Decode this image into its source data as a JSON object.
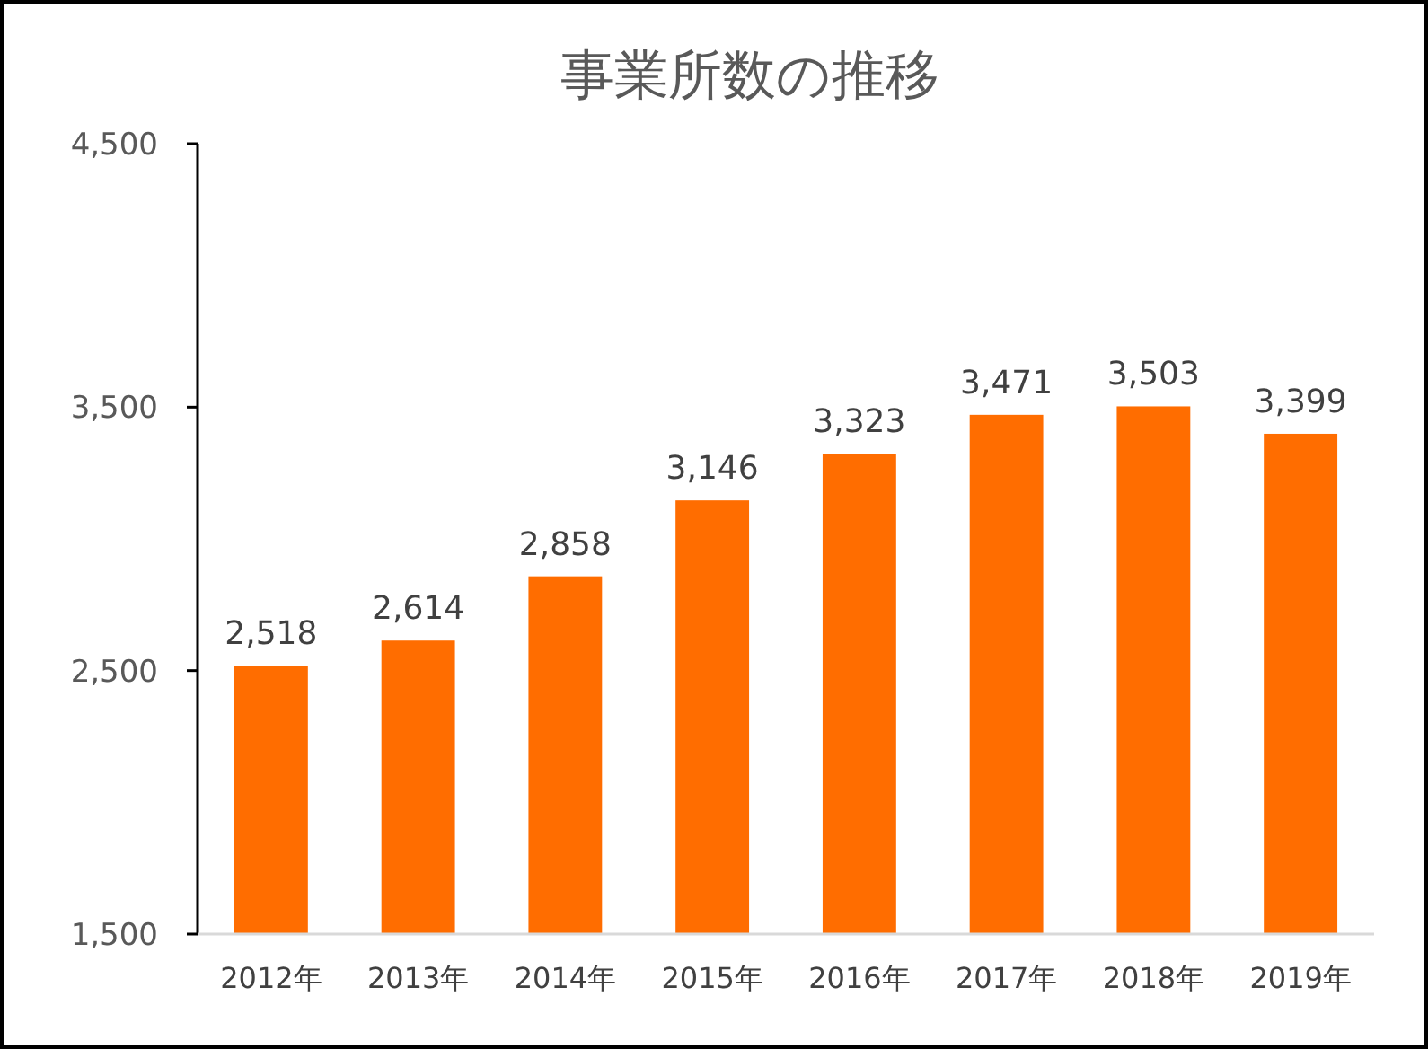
{
  "chart_data": {
    "type": "bar",
    "title": "事業所数の推移",
    "categories": [
      "2012年",
      "2013年",
      "2014年",
      "2015年",
      "2016年",
      "2017年",
      "2018年",
      "2019年"
    ],
    "values": [
      2518,
      2614,
      2858,
      3146,
      3323,
      3471,
      3503,
      3399
    ],
    "value_labels": [
      "2,518",
      "2,614",
      "2,858",
      "3,146",
      "3,323",
      "3,471",
      "3,503",
      "3,399"
    ],
    "color": "#ff6d00",
    "ylim": [
      1500,
      4500
    ],
    "yticks": [
      {
        "value": 1500,
        "label": "1,500"
      },
      {
        "value": 2500,
        "label": "2,500"
      },
      {
        "value": 3500,
        "label": "3,500"
      },
      {
        "value": 4500,
        "label": "4,500"
      }
    ],
    "grid": false
  }
}
